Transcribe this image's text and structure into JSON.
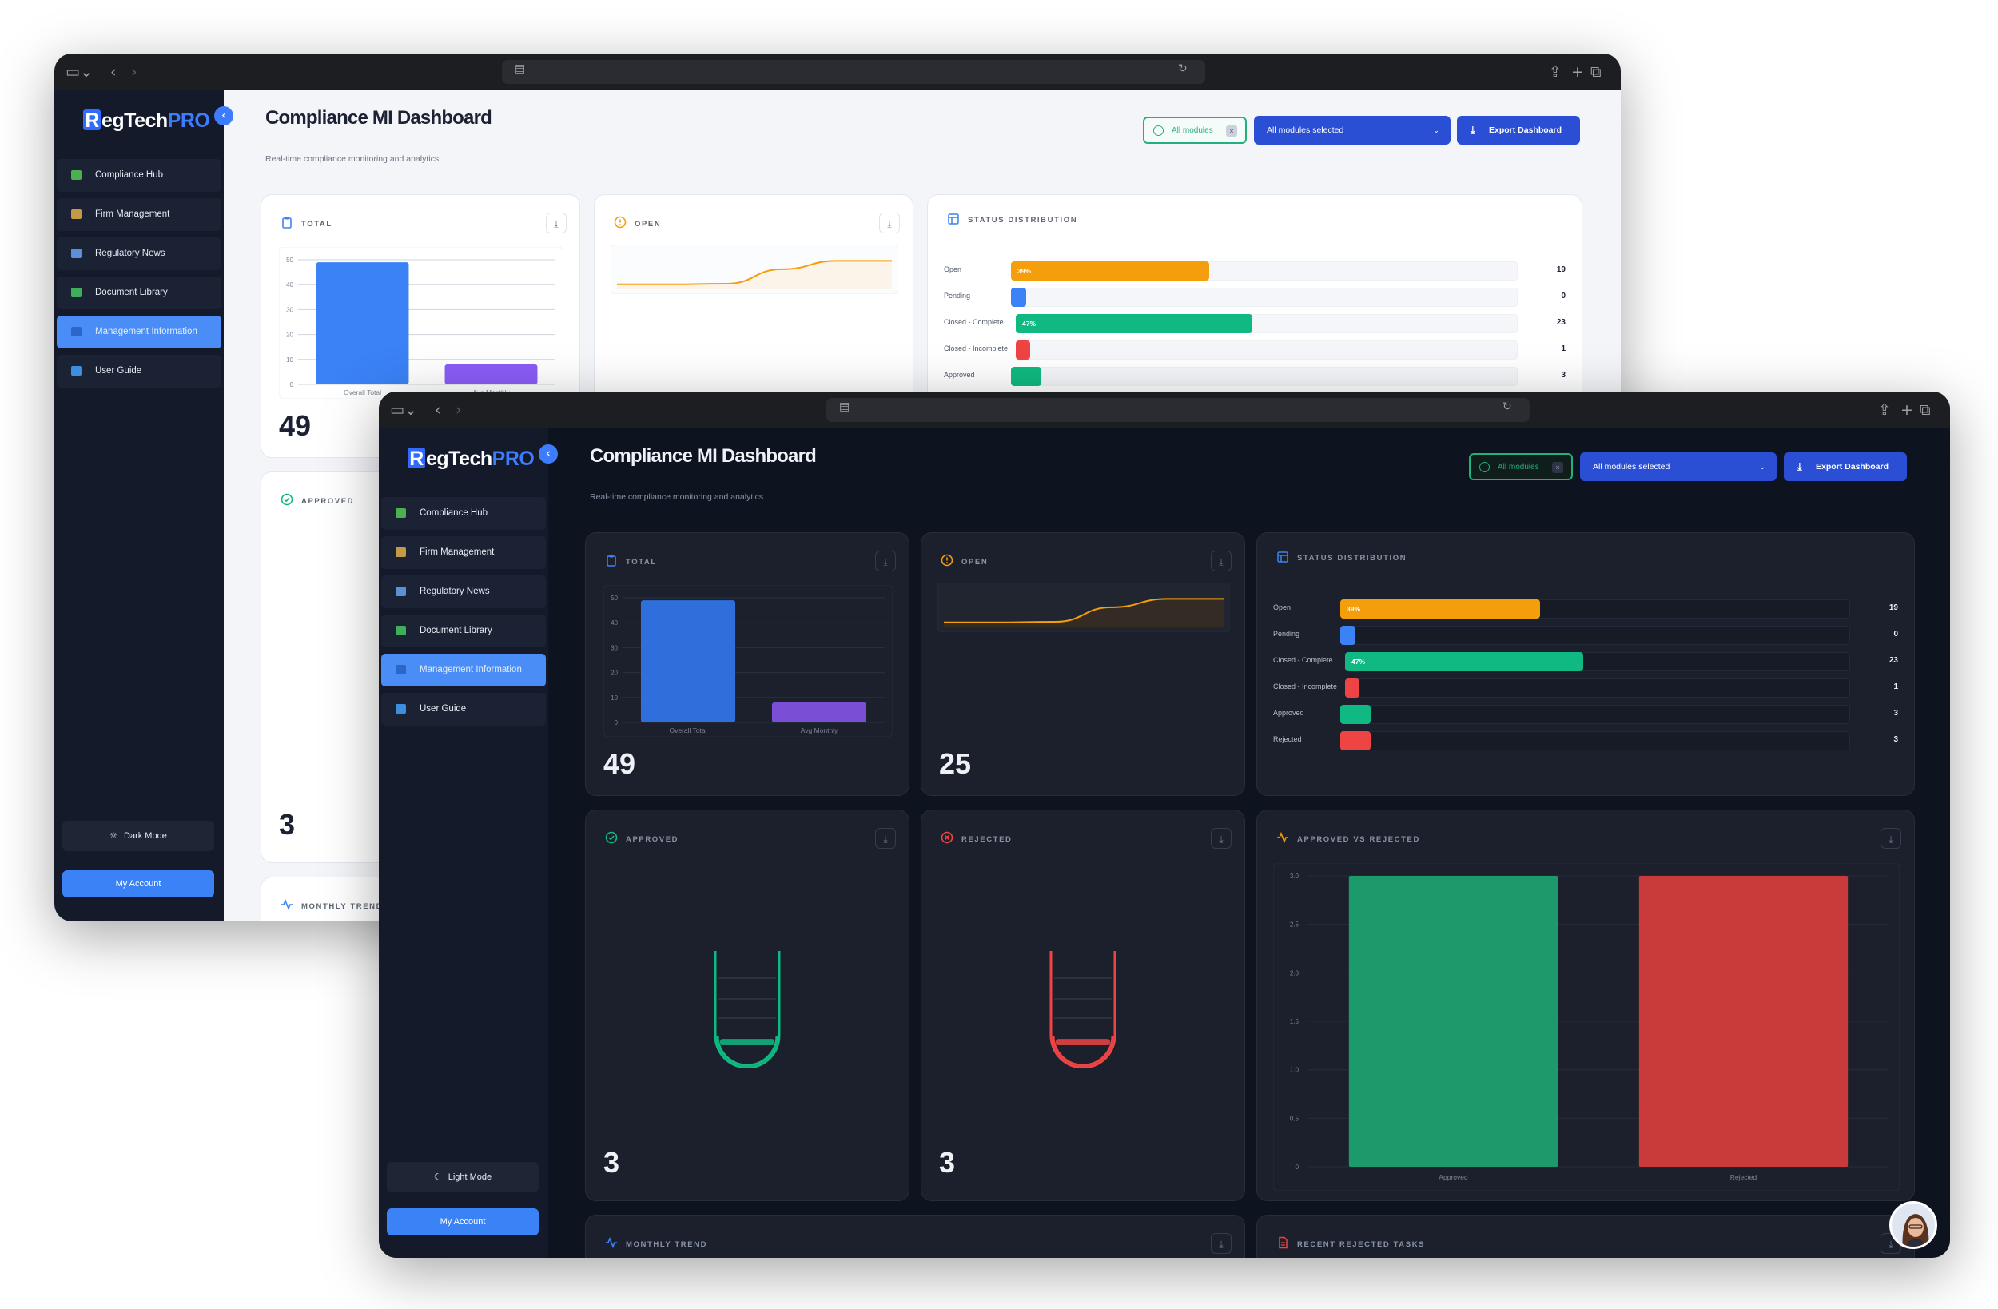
{
  "app": {
    "logo_r": "R",
    "logo_text": "egTech",
    "logo_pro": "PRO",
    "title": "Compliance MI Dashboard",
    "subtitle": "Real-time compliance monitoring and analytics"
  },
  "nav": [
    {
      "label": "Compliance Hub",
      "icon": "checklist-icon",
      "color": "#4caf50"
    },
    {
      "label": "Firm Management",
      "icon": "building-icon",
      "color": "#c59a46"
    },
    {
      "label": "Regulatory News",
      "icon": "news-icon",
      "color": "#5d8fd8"
    },
    {
      "label": "Document Library",
      "icon": "folder-icon",
      "color": "#3fae5a"
    },
    {
      "label": "Management Information",
      "icon": "chart-icon",
      "color": "#2b67c9",
      "active": true
    },
    {
      "label": "User Guide",
      "icon": "book-icon",
      "color": "#3b8ee0"
    }
  ],
  "light_window": {
    "theme_button": "Dark Mode",
    "account_button": "My Account"
  },
  "dark_window": {
    "theme_button": "Light Mode",
    "account_button": "My Account"
  },
  "toolbar": {
    "chip_label": "All modules",
    "chip_clear": "×",
    "select_label": "All modules selected",
    "export_label": "Export Dashboard"
  },
  "cards": {
    "total": {
      "title": "TOTAL",
      "value": "49"
    },
    "open": {
      "title": "OPEN",
      "value": "25"
    },
    "status": {
      "title": "STATUS DISTRIBUTION"
    },
    "approved": {
      "title": "APPROVED",
      "value": "3"
    },
    "rejected": {
      "title": "REJECTED",
      "value": "3"
    },
    "approved_vs_rejected": {
      "title": "APPROVED VS REJECTED"
    },
    "monthly_trend": {
      "title": "MONTHLY TREND"
    },
    "recent_rejected": {
      "title": "RECENT REJECTED TASKS"
    }
  },
  "colors": {
    "open": "#f59e0b",
    "pending": "#3b82f6",
    "closed_complete": "#10b981",
    "closed_incomplete": "#ef4444",
    "approved": "#10b981",
    "rejected": "#ef4444",
    "accent": "#3b82f6"
  },
  "chart_data": [
    {
      "type": "bar",
      "title": "TOTAL",
      "categories": [
        "Overall Total",
        "Avg Monthly"
      ],
      "values": [
        49,
        8
      ],
      "yticks": [
        0,
        10,
        20,
        30,
        40,
        50
      ],
      "ylim": [
        0,
        50
      ],
      "colors": [
        "#3b82f6",
        "#8b5cf6"
      ]
    },
    {
      "type": "area",
      "title": "OPEN",
      "values": [
        0.1,
        0.1,
        0.12,
        0.55,
        0.8,
        0.8
      ]
    },
    {
      "type": "bar",
      "title": "STATUS DISTRIBUTION",
      "orientation": "horizontal",
      "max": 49,
      "rows": [
        {
          "label": "Open",
          "value": 19,
          "percent_label": "39%",
          "share": 0.39,
          "color": "#f59e0b"
        },
        {
          "label": "Pending",
          "value": 0,
          "percent_label": "",
          "share": 0.03,
          "color": "#3b82f6"
        },
        {
          "label": "Closed - Complete",
          "value": 23,
          "percent_label": "47%",
          "share": 0.47,
          "color": "#10b981"
        },
        {
          "label": "Closed - Incomplete",
          "value": 1,
          "percent_label": "",
          "share": 0.025,
          "color": "#ef4444"
        },
        {
          "label": "Approved",
          "value": 3,
          "percent_label": "",
          "share": 0.06,
          "color": "#10b981"
        },
        {
          "label": "Rejected",
          "value": 3,
          "percent_label": "",
          "share": 0.06,
          "color": "#ef4444"
        }
      ]
    },
    {
      "type": "bar",
      "title": "APPROVED VS REJECTED",
      "categories": [
        "Approved",
        "Rejected"
      ],
      "values": [
        3,
        3
      ],
      "yticks": [
        "0",
        "0.5",
        "1.0",
        "1.5",
        "2.0",
        "2.5",
        "3.0"
      ],
      "ylim": [
        0,
        3
      ],
      "colors": [
        "#1c9a6b",
        "#c93a3a"
      ]
    },
    {
      "type": "bar",
      "title": "APPROVED",
      "gauge_fill": 0.06,
      "color": "#10b981"
    },
    {
      "type": "bar",
      "title": "REJECTED",
      "gauge_fill": 0.06,
      "color": "#ef4444"
    }
  ]
}
